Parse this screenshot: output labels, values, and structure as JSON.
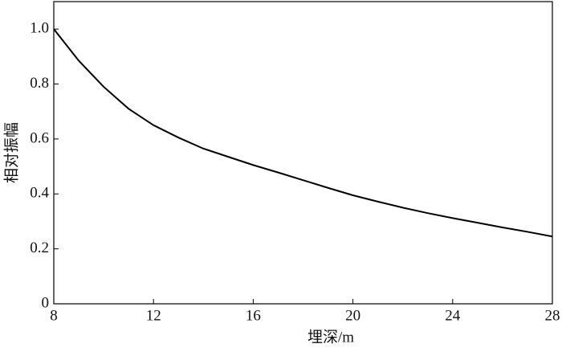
{
  "chart_data": {
    "type": "line",
    "xlabel": "埋深/m",
    "ylabel": "相对振幅",
    "x": [
      8,
      9,
      10,
      11,
      12,
      13,
      14,
      15,
      16,
      17,
      18,
      19,
      20,
      21,
      22,
      23,
      24,
      25,
      26,
      27,
      28
    ],
    "series": [
      {
        "color": "#000000",
        "values": [
          1.0,
          0.885,
          0.79,
          0.71,
          0.65,
          0.605,
          0.565,
          0.535,
          0.505,
          0.478,
          0.45,
          0.422,
          0.395,
          0.372,
          0.35,
          0.33,
          0.312,
          0.295,
          0.278,
          0.262,
          0.245
        ]
      }
    ],
    "xlim": [
      8,
      28
    ],
    "xticks": [
      8,
      12,
      16,
      20,
      24,
      28
    ],
    "ylim": [
      0,
      1.1
    ],
    "yticks": [
      0,
      0.2,
      0.4,
      0.6,
      0.8,
      {
        "value": 1,
        "label": "1.0"
      }
    ],
    "grid": false
  }
}
